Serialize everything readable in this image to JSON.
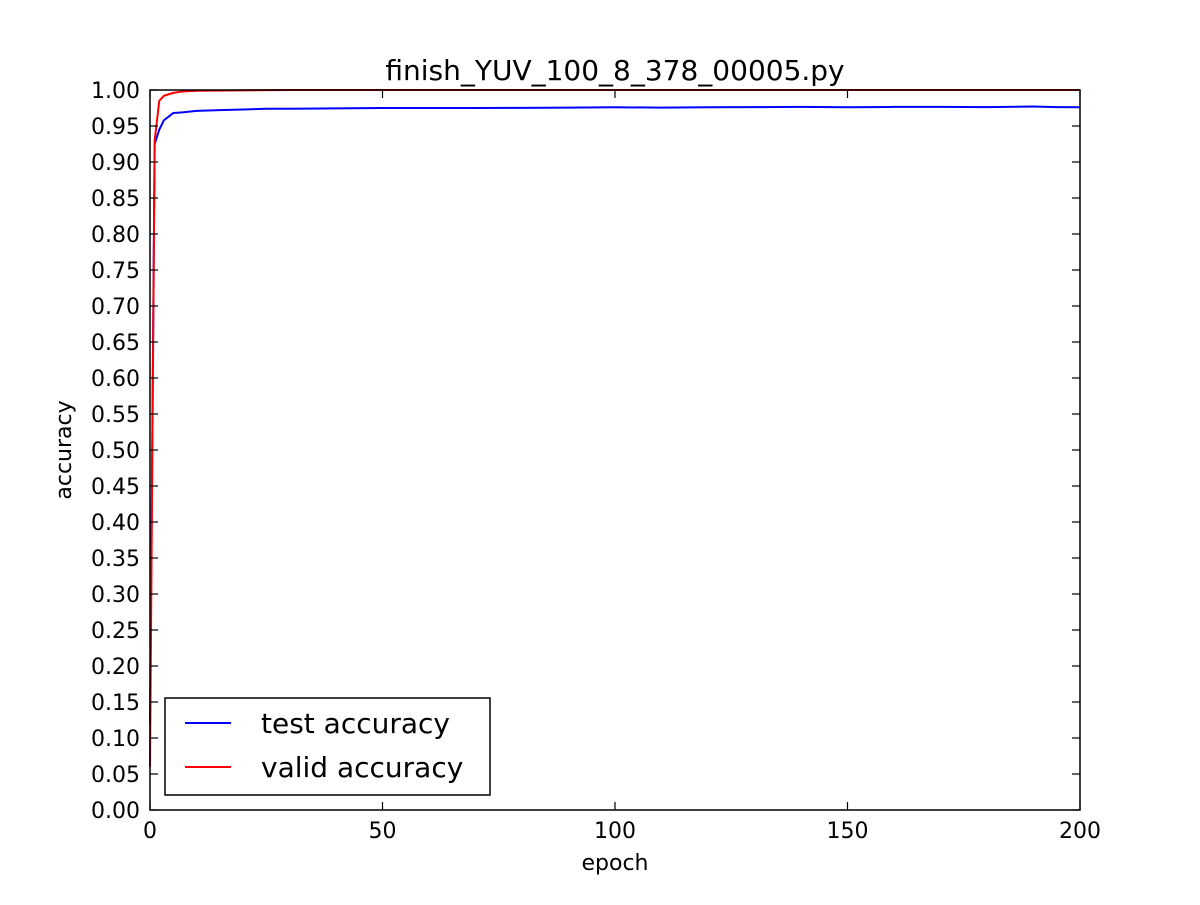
{
  "chart_data": {
    "type": "line",
    "title": "finish_YUV_100_8_378_00005.py",
    "xlabel": "epoch",
    "ylabel": "accuracy",
    "xlim": [
      0,
      200
    ],
    "ylim": [
      0.0,
      1.0
    ],
    "xticks": [
      "0",
      "50",
      "100",
      "150",
      "200"
    ],
    "xtick_values": [
      0,
      50,
      100,
      150,
      200
    ],
    "yticks": [
      "0.00",
      "0.05",
      "0.10",
      "0.15",
      "0.20",
      "0.25",
      "0.30",
      "0.35",
      "0.40",
      "0.45",
      "0.50",
      "0.55",
      "0.60",
      "0.65",
      "0.70",
      "0.75",
      "0.80",
      "0.85",
      "0.90",
      "0.95",
      "1.00"
    ],
    "ytick_values": [
      0.0,
      0.05,
      0.1,
      0.15,
      0.2,
      0.25,
      0.3,
      0.35,
      0.4,
      0.45,
      0.5,
      0.55,
      0.6,
      0.65,
      0.7,
      0.75,
      0.8,
      0.85,
      0.9,
      0.95,
      1.0
    ],
    "grid": false,
    "legend_position": "bottom-left",
    "series": [
      {
        "name": "test accuracy",
        "color": "#0000ff",
        "x": [
          0,
          1,
          2,
          3,
          5,
          7,
          10,
          15,
          20,
          25,
          30,
          40,
          50,
          60,
          70,
          80,
          90,
          100,
          110,
          120,
          130,
          140,
          150,
          160,
          170,
          180,
          190,
          195,
          200
        ],
        "y": [
          0.12,
          0.925,
          0.945,
          0.958,
          0.968,
          0.969,
          0.971,
          0.972,
          0.973,
          0.974,
          0.974,
          0.9745,
          0.975,
          0.975,
          0.975,
          0.9752,
          0.9755,
          0.976,
          0.9755,
          0.976,
          0.9762,
          0.9765,
          0.976,
          0.9765,
          0.9765,
          0.9762,
          0.977,
          0.9762,
          0.976
        ]
      },
      {
        "name": "valid accuracy",
        "color": "#ff0000",
        "x": [
          0,
          1,
          2,
          3,
          5,
          7,
          10,
          20,
          30,
          50,
          100,
          150,
          200
        ],
        "y": [
          0.06,
          0.93,
          0.985,
          0.992,
          0.996,
          0.998,
          0.999,
          0.9995,
          1.0,
          1.0,
          1.0,
          1.0,
          1.0
        ]
      }
    ]
  }
}
